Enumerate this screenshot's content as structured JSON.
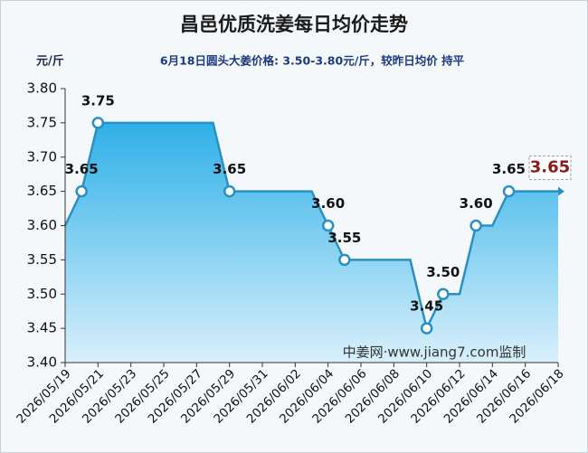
{
  "chart_data": {
    "type": "area",
    "title": "昌邑优质洗姜每日均价走势",
    "unit_label": "元/斤",
    "subtitle": "6月18日圆头大姜价格: 3.50-3.80元/斤，较昨日均价 持平",
    "watermark": "中姜网·www.jiang7.com监制",
    "categories": [
      "2026/05/19",
      null,
      "2026/05/21",
      null,
      "2026/05/23",
      null,
      "2026/05/25",
      null,
      "2026/05/27",
      null,
      "2026/05/29",
      null,
      "2026/05/31",
      null,
      "2026/06/02",
      null,
      "2026/06/04",
      null,
      "2026/06/06",
      null,
      "2026/06/08",
      null,
      "2026/06/10",
      null,
      "2026/06/12",
      null,
      "2026/06/14",
      null,
      "2026/06/16",
      null,
      "2026/06/18"
    ],
    "values": [
      3.6,
      3.65,
      3.75,
      3.75,
      3.75,
      3.75,
      3.75,
      3.75,
      3.75,
      3.75,
      3.65,
      3.65,
      3.65,
      3.65,
      3.65,
      3.65,
      3.6,
      3.55,
      3.55,
      3.55,
      3.55,
      3.55,
      3.45,
      3.5,
      3.5,
      3.6,
      3.6,
      3.65,
      3.65,
      3.65,
      3.65
    ],
    "value_labels": [
      null,
      "3.65",
      "3.75",
      null,
      null,
      null,
      null,
      null,
      null,
      null,
      "3.65",
      null,
      null,
      null,
      null,
      null,
      "3.60",
      "3.55",
      null,
      null,
      null,
      null,
      "3.45",
      "3.50",
      null,
      "3.60",
      null,
      "3.65",
      null,
      null,
      "3.65"
    ],
    "color": "#2a90c2",
    "ylim": [
      3.4,
      3.8
    ],
    "yticks": [
      {
        "value": 3.4,
        "label": "3.40"
      },
      {
        "value": 3.45,
        "label": "3.45"
      },
      {
        "value": 3.5,
        "label": "3.50"
      },
      {
        "value": 3.55,
        "label": "3.55"
      },
      {
        "value": 3.6,
        "label": "3.60"
      },
      {
        "value": 3.65,
        "label": "3.65"
      },
      {
        "value": 3.7,
        "label": "3.70"
      },
      {
        "value": 3.75,
        "label": "3.75"
      },
      {
        "value": 3.8,
        "label": "3.80"
      }
    ]
  }
}
